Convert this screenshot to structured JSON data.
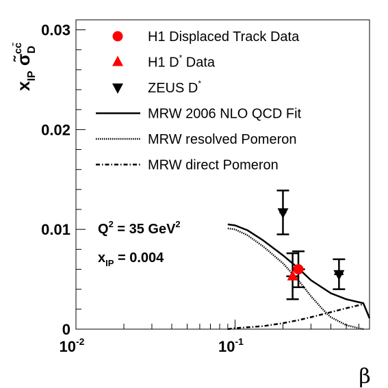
{
  "chart_data": {
    "type": "line",
    "x_scale": "log",
    "xlim": [
      0.01,
      0.7
    ],
    "ylim": [
      0,
      0.031
    ],
    "xlabel": "β",
    "ylabel": {
      "base": "x",
      "base_sub": "IP",
      "sigma": "σ̃",
      "sigma_sub": "D",
      "sigma_sup": "cc̄"
    },
    "x_ticks": [
      {
        "value": 0.01,
        "base": "10",
        "exp": "-2"
      },
      {
        "value": 0.1,
        "base": "10",
        "exp": "-1"
      }
    ],
    "y_ticks": [
      {
        "value": 0,
        "label": "0"
      },
      {
        "value": 0.01,
        "label": "0.01"
      },
      {
        "value": 0.02,
        "label": "0.02"
      },
      {
        "value": 0.03,
        "label": "0.03"
      }
    ],
    "annotations": [
      {
        "id": "q2",
        "prefix": "Q",
        "sup": "2",
        "middle": " = 35 GeV",
        "sup2": "2"
      },
      {
        "id": "xip",
        "prefix": "x",
        "sub": "IP",
        "middle": " = 0.004"
      }
    ],
    "series": [
      {
        "name": "H1 Displaced Track Data",
        "marker": "circle",
        "color": "#ff0000",
        "points": [
          {
            "x": 0.25,
            "y": 0.006,
            "yerr": 0.0018,
            "xerr_lo": 0.23,
            "xerr_hi": 0.275
          }
        ]
      },
      {
        "name": "H1 D",
        "name_sup": "*",
        "name_suffix": " Data",
        "marker": "triangle-up",
        "color": "#ff0000",
        "points": [
          {
            "x": 0.23,
            "y": 0.0053,
            "yerr": 0.0023,
            "xerr_lo": 0.21,
            "xerr_hi": 0.25
          }
        ]
      },
      {
        "name": "ZEUS D",
        "name_sup": "*",
        "marker": "triangle-down",
        "color": "#000000",
        "points": [
          {
            "x": 0.2,
            "y": 0.0117,
            "yerr": 0.0022,
            "xerr_lo": 0.19,
            "xerr_hi": 0.21
          },
          {
            "x": 0.45,
            "y": 0.0055,
            "yerr": 0.0015,
            "xerr_lo": 0.42,
            "xerr_hi": 0.48
          }
        ]
      },
      {
        "name": "MRW 2006 NLO QCD Fit",
        "style": "solid",
        "color": "#000000",
        "points": [
          {
            "x": 0.09,
            "y": 0.0105
          },
          {
            "x": 0.1,
            "y": 0.0104
          },
          {
            "x": 0.12,
            "y": 0.0099
          },
          {
            "x": 0.15,
            "y": 0.0089
          },
          {
            "x": 0.2,
            "y": 0.0074
          },
          {
            "x": 0.25,
            "y": 0.0061
          },
          {
            "x": 0.3,
            "y": 0.0049
          },
          {
            "x": 0.4,
            "y": 0.0036
          },
          {
            "x": 0.5,
            "y": 0.003
          },
          {
            "x": 0.6,
            "y": 0.0027
          },
          {
            "x": 0.64,
            "y": 0.0026
          },
          {
            "x": 0.7,
            "y": 0.0011
          }
        ]
      },
      {
        "name": "MRW resolved Pomeron",
        "style": "dotted",
        "color": "#000000",
        "points": [
          {
            "x": 0.09,
            "y": 0.0101
          },
          {
            "x": 0.1,
            "y": 0.01
          },
          {
            "x": 0.12,
            "y": 0.0094
          },
          {
            "x": 0.15,
            "y": 0.0083
          },
          {
            "x": 0.2,
            "y": 0.0066
          },
          {
            "x": 0.25,
            "y": 0.0049
          },
          {
            "x": 0.3,
            "y": 0.0033
          },
          {
            "x": 0.35,
            "y": 0.0021
          },
          {
            "x": 0.4,
            "y": 0.0012
          },
          {
            "x": 0.5,
            "y": 0.0004
          },
          {
            "x": 0.6,
            "y": 0.0001
          },
          {
            "x": 0.64,
            "y": 0.0
          }
        ]
      },
      {
        "name": "MRW direct Pomeron",
        "style": "dashdot",
        "color": "#000000",
        "points": [
          {
            "x": 0.09,
            "y": 0.0
          },
          {
            "x": 0.1,
            "y": 0.0001
          },
          {
            "x": 0.15,
            "y": 0.0003
          },
          {
            "x": 0.2,
            "y": 0.0006
          },
          {
            "x": 0.25,
            "y": 0.0009
          },
          {
            "x": 0.3,
            "y": 0.0012
          },
          {
            "x": 0.4,
            "y": 0.0017
          },
          {
            "x": 0.5,
            "y": 0.0021
          },
          {
            "x": 0.6,
            "y": 0.0024
          },
          {
            "x": 0.64,
            "y": 0.0025
          }
        ]
      }
    ],
    "legend": {
      "placement": "top",
      "order": [
        0,
        1,
        2,
        3,
        4,
        5
      ]
    }
  }
}
